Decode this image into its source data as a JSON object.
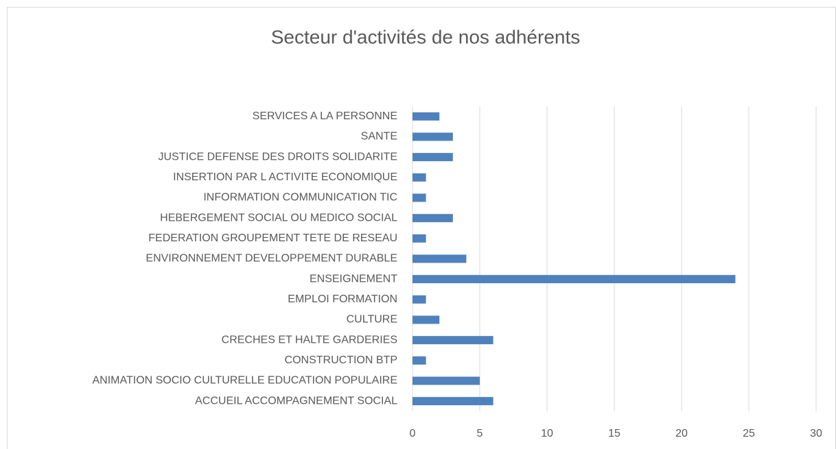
{
  "chart_data": {
    "type": "bar",
    "orientation": "horizontal",
    "title": "Secteur d'activités de nos adhérents",
    "categories": [
      "ACCUEIL ACCOMPAGNEMENT SOCIAL",
      "ANIMATION SOCIO CULTURELLE EDUCATION POPULAIRE",
      "CONSTRUCTION BTP",
      "CRECHES ET HALTE GARDERIES",
      "CULTURE",
      "EMPLOI FORMATION",
      "ENSEIGNEMENT",
      "ENVIRONNEMENT DEVELOPPEMENT DURABLE",
      "FEDERATION GROUPEMENT TETE DE RESEAU",
      "HEBERGEMENT SOCIAL OU MEDICO SOCIAL",
      "INFORMATION COMMUNICATION TIC",
      "INSERTION PAR L ACTIVITE ECONOMIQUE",
      "JUSTICE DEFENSE DES DROITS SOLIDARITE",
      "SANTE",
      "SERVICES A LA PERSONNE"
    ],
    "values": [
      6,
      5,
      1,
      6,
      2,
      1,
      24,
      4,
      1,
      3,
      1,
      1,
      3,
      3,
      2
    ],
    "color": "#4f81bd",
    "xlim": [
      0,
      30
    ],
    "xticks": [
      0,
      5,
      10,
      15,
      20,
      25,
      30
    ],
    "grid": true
  }
}
